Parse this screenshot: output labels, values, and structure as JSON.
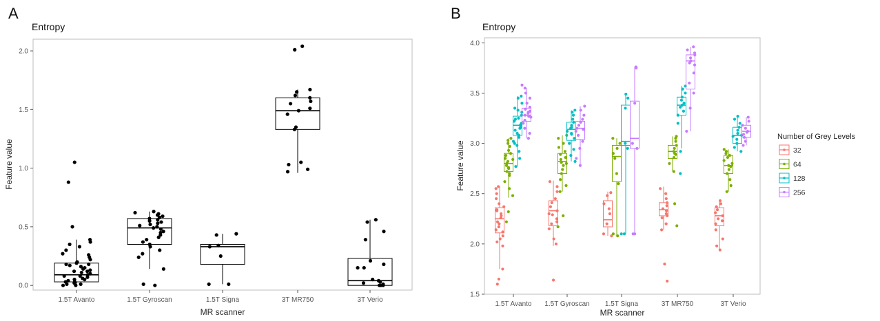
{
  "figure": {
    "panel_labels": [
      "A",
      "B"
    ]
  },
  "chart_data": [
    {
      "type": "box",
      "panel": "A",
      "title": "Entropy",
      "xlabel": "MR scanner",
      "ylabel": "Feature value",
      "ylim": [
        -0.04,
        2.1
      ],
      "yticks": [
        0.0,
        0.5,
        1.0,
        1.5,
        2.0
      ],
      "ytick_labels": [
        "0.0",
        "0.5",
        "1.0",
        "1.5",
        "2.0"
      ],
      "categories": [
        "1.5T Avanto",
        "1.5T Gyroscan",
        "1.5T Signa",
        "3T MR750",
        "3T Verio"
      ],
      "grid": false,
      "series": [
        {
          "color": "#000000",
          "boxes": [
            {
              "q1": 0.03,
              "median": 0.09,
              "q3": 0.19,
              "whisker_low": 0.0,
              "whisker_high": 0.39
            },
            {
              "q1": 0.35,
              "median": 0.49,
              "q3": 0.57,
              "whisker_low": 0.14,
              "whisker_high": 0.63
            },
            {
              "q1": 0.18,
              "median": 0.33,
              "q3": 0.35,
              "whisker_low": 0.01,
              "whisker_high": 0.44
            },
            {
              "q1": 1.33,
              "median": 1.49,
              "q3": 1.6,
              "whisker_low": 0.96,
              "whisker_high": 1.67
            },
            {
              "q1": 0.0,
              "median": 0.04,
              "q3": 0.23,
              "whisker_low": 0.0,
              "whisker_high": 0.56
            }
          ],
          "points": [
            [
              1.05,
              0.88,
              0.5,
              0.39,
              0.37,
              0.35,
              0.33,
              0.3,
              0.27,
              0.26,
              0.24,
              0.22,
              0.2,
              0.19,
              0.18,
              0.17,
              0.16,
              0.15,
              0.14,
              0.13,
              0.12,
              0.11,
              0.1,
              0.09,
              0.08,
              0.07,
              0.06,
              0.05,
              0.04,
              0.03,
              0.02,
              0.01,
              0.0,
              0.0,
              0.01,
              0.03,
              0.05,
              0.08,
              0.12,
              0.18
            ],
            [
              0.63,
              0.62,
              0.61,
              0.6,
              0.59,
              0.58,
              0.57,
              0.56,
              0.55,
              0.54,
              0.53,
              0.52,
              0.51,
              0.5,
              0.49,
              0.48,
              0.46,
              0.45,
              0.43,
              0.41,
              0.39,
              0.37,
              0.35,
              0.33,
              0.3,
              0.27,
              0.24,
              0.14,
              0.01,
              0.0
            ],
            [
              0.44,
              0.43,
              0.34,
              0.33,
              0.25,
              0.01,
              0.01
            ],
            [
              2.04,
              2.01,
              1.67,
              1.65,
              1.62,
              1.6,
              1.57,
              1.55,
              1.51,
              1.49,
              1.46,
              1.35,
              1.33,
              1.05,
              1.03,
              0.99,
              0.97
            ],
            [
              0.56,
              0.54,
              0.46,
              0.39,
              0.21,
              0.18,
              0.15,
              0.15,
              0.05,
              0.04,
              0.03,
              0.02,
              0.01,
              0.0,
              0.0,
              0.0
            ]
          ]
        }
      ]
    },
    {
      "type": "box",
      "panel": "B",
      "title": "Entropy",
      "xlabel": "MR scanner",
      "ylabel": "Feature value",
      "ylim": [
        1.5,
        4.05
      ],
      "yticks": [
        1.5,
        2.0,
        2.5,
        3.0,
        3.5,
        4.0
      ],
      "ytick_labels": [
        "1.5",
        "2.0",
        "2.5",
        "3.0",
        "3.5",
        "4.0"
      ],
      "categories": [
        "1.5T Avanto",
        "1.5T Gyroscan",
        "1.5T Signa",
        "3T MR750",
        "3T Verio"
      ],
      "grid": false,
      "legend": {
        "title": "Number of Grey Levels",
        "position": "right"
      },
      "series": [
        {
          "name": "32",
          "color": "#f8766d",
          "boxes": [
            {
              "q1": 2.11,
              "median": 2.25,
              "q3": 2.36,
              "whisker_low": 1.75,
              "whisker_high": 2.57
            },
            {
              "q1": 2.18,
              "median": 2.33,
              "q3": 2.43,
              "whisker_low": 1.98,
              "whisker_high": 2.63
            },
            {
              "q1": 2.17,
              "median": 2.24,
              "q3": 2.43,
              "whisker_low": 2.08,
              "whisker_high": 2.52
            },
            {
              "q1": 2.28,
              "median": 2.34,
              "q3": 2.41,
              "whisker_low": 2.14,
              "whisker_high": 2.57
            },
            {
              "q1": 2.18,
              "median": 2.28,
              "q3": 2.36,
              "whisker_low": 1.94,
              "whisker_high": 2.43
            }
          ],
          "points": [
            [
              1.6,
              1.65,
              1.75,
              1.98,
              2.02,
              2.08,
              2.12,
              2.17,
              2.22,
              2.26,
              2.3,
              2.34,
              2.37,
              2.4,
              2.45,
              2.5,
              2.55,
              2.57,
              2.28,
              2.2,
              2.14,
              2.33,
              2.05
            ],
            [
              1.64,
              2.0,
              2.05,
              2.15,
              2.2,
              2.25,
              2.29,
              2.33,
              2.37,
              2.41,
              2.45,
              2.52,
              2.57,
              2.62,
              2.3,
              2.22
            ],
            [
              2.08,
              2.1,
              2.2,
              2.3,
              2.35,
              2.4,
              2.48,
              2.51
            ],
            [
              1.63,
              1.8,
              2.14,
              2.2,
              2.26,
              2.3,
              2.33,
              2.35,
              2.38,
              2.41,
              2.45,
              2.5,
              2.55,
              2.28
            ],
            [
              1.94,
              1.98,
              2.05,
              2.14,
              2.2,
              2.25,
              2.28,
              2.31,
              2.34,
              2.37,
              2.4,
              2.43,
              2.23
            ]
          ]
        },
        {
          "name": "64",
          "color": "#7cae00",
          "boxes": [
            {
              "q1": 2.72,
              "median": 2.8,
              "q3": 2.9,
              "whisker_low": 2.46,
              "whisker_high": 3.05
            },
            {
              "q1": 2.7,
              "median": 2.82,
              "q3": 2.9,
              "whisker_low": 2.52,
              "whisker_high": 3.08
            },
            {
              "q1": 2.62,
              "median": 2.87,
              "q3": 2.98,
              "whisker_low": 2.08,
              "whisker_high": 3.05
            },
            {
              "q1": 2.85,
              "median": 2.92,
              "q3": 2.98,
              "whisker_low": 2.72,
              "whisker_high": 3.07
            },
            {
              "q1": 2.7,
              "median": 2.78,
              "q3": 2.88,
              "whisker_low": 2.52,
              "whisker_high": 2.94
            }
          ],
          "points": [
            [
              2.22,
              2.32,
              2.48,
              2.55,
              2.62,
              2.68,
              2.72,
              2.75,
              2.78,
              2.8,
              2.82,
              2.85,
              2.88,
              2.9,
              2.93,
              2.97,
              3.0,
              3.03,
              3.05,
              2.76,
              2.84,
              2.7
            ],
            [
              2.17,
              2.28,
              2.52,
              2.58,
              2.64,
              2.7,
              2.74,
              2.78,
              2.81,
              2.84,
              2.86,
              2.89,
              2.92,
              2.96,
              3.0,
              3.05,
              3.08,
              2.8
            ],
            [
              2.08,
              2.1,
              2.6,
              2.7,
              2.85,
              2.9,
              2.95,
              3.0,
              3.05
            ],
            [
              2.18,
              2.4,
              2.72,
              2.8,
              2.86,
              2.89,
              2.92,
              2.95,
              2.98,
              3.02,
              3.05,
              3.07,
              2.9
            ],
            [
              2.52,
              2.58,
              2.64,
              2.7,
              2.74,
              2.77,
              2.8,
              2.83,
              2.86,
              2.88,
              2.9,
              2.92,
              2.94,
              2.78
            ]
          ]
        },
        {
          "name": "128",
          "color": "#00bfc4",
          "boxes": [
            {
              "q1": 3.08,
              "median": 3.18,
              "q3": 3.27,
              "whisker_low": 2.77,
              "whisker_high": 3.47
            },
            {
              "q1": 3.03,
              "median": 3.14,
              "q3": 3.21,
              "whisker_low": 2.82,
              "whisker_high": 3.33
            },
            {
              "q1": 2.98,
              "median": 3.02,
              "q3": 3.38,
              "whisker_low": 2.1,
              "whisker_high": 3.49
            },
            {
              "q1": 3.28,
              "median": 3.38,
              "q3": 3.46,
              "whisker_low": 2.95,
              "whisker_high": 3.57
            },
            {
              "q1": 3.0,
              "median": 3.08,
              "q3": 3.16,
              "whisker_low": 2.92,
              "whisker_high": 3.27
            }
          ],
          "points": [
            [
              2.77,
              2.85,
              2.92,
              2.98,
              3.02,
              3.06,
              3.1,
              3.13,
              3.16,
              3.18,
              3.2,
              3.22,
              3.25,
              3.28,
              3.31,
              3.35,
              3.4,
              3.45,
              3.47,
              3.15,
              3.24,
              3.08,
              3.33,
              3.0
            ],
            [
              2.82,
              2.88,
              2.94,
              3.0,
              3.05,
              3.09,
              3.12,
              3.15,
              3.18,
              3.21,
              3.24,
              3.28,
              3.31,
              3.33,
              3.1,
              3.16
            ],
            [
              2.1,
              2.1,
              2.95,
              3.0,
              3.35,
              3.45,
              3.49
            ],
            [
              2.7,
              2.92,
              3.2,
              3.28,
              3.32,
              3.36,
              3.4,
              3.43,
              3.46,
              3.5,
              3.54,
              3.57,
              3.38
            ],
            [
              2.92,
              2.96,
              3.0,
              3.04,
              3.07,
              3.1,
              3.13,
              3.16,
              3.2,
              3.24,
              3.27,
              3.08
            ]
          ]
        },
        {
          "name": "256",
          "color": "#c77cff",
          "boxes": [
            {
              "q1": 3.22,
              "median": 3.28,
              "q3": 3.35,
              "whisker_low": 3.05,
              "whisker_high": 3.55
            },
            {
              "q1": 3.04,
              "median": 3.15,
              "q3": 3.22,
              "whisker_low": 2.78,
              "whisker_high": 3.37
            },
            {
              "q1": 2.95,
              "median": 3.05,
              "q3": 3.42,
              "whisker_low": 2.1,
              "whisker_high": 3.76
            },
            {
              "q1": 3.54,
              "median": 3.82,
              "q3": 3.88,
              "whisker_low": 3.12,
              "whisker_high": 3.96
            },
            {
              "q1": 3.06,
              "median": 3.12,
              "q3": 3.18,
              "whisker_low": 2.98,
              "whisker_high": 3.26
            }
          ],
          "points": [
            [
              3.05,
              3.1,
              3.15,
              3.2,
              3.23,
              3.26,
              3.28,
              3.3,
              3.32,
              3.34,
              3.36,
              3.4,
              3.45,
              3.5,
              3.55,
              3.58,
              3.27,
              3.31
            ],
            [
              2.78,
              2.85,
              2.95,
              3.02,
              3.08,
              3.12,
              3.15,
              3.18,
              3.21,
              3.24,
              3.28,
              3.33,
              3.37,
              3.14
            ],
            [
              2.1,
              2.1,
              2.95,
              3.0,
              3.4,
              3.75,
              3.76
            ],
            [
              3.12,
              3.35,
              3.5,
              3.6,
              3.7,
              3.78,
              3.82,
              3.85,
              3.88,
              3.9,
              3.93,
              3.96,
              3.8
            ],
            [
              2.98,
              3.02,
              3.06,
              3.09,
              3.12,
              3.15,
              3.18,
              3.22,
              3.26,
              3.11
            ]
          ]
        }
      ]
    }
  ]
}
